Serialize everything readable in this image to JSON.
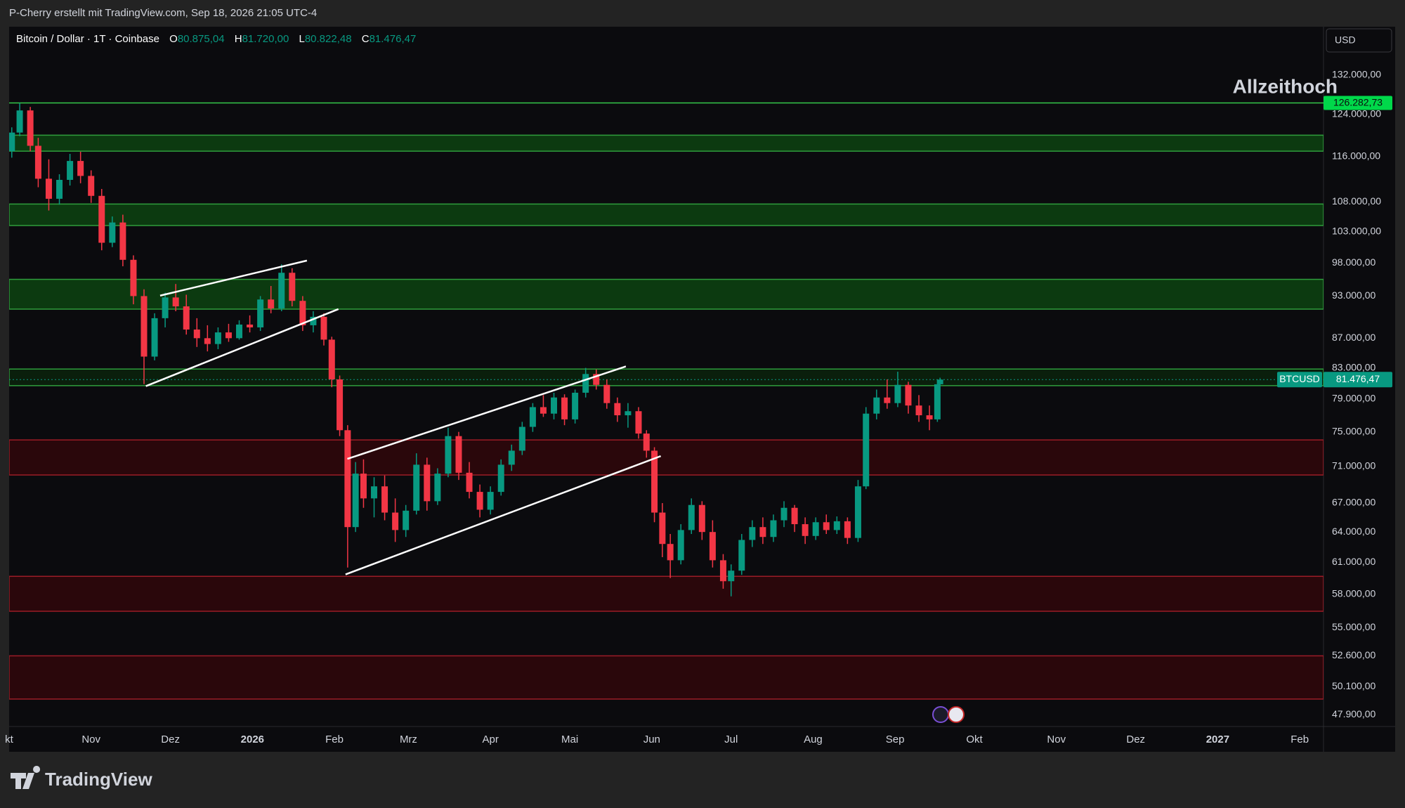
{
  "chart_data": {
    "type": "candlestick",
    "watermark": "P-Cherry erstellt mit TradingView.com, Sep 18, 2026 21:05 UTC-4",
    "title": "Bitcoin / Dollar · 1T · Coinbase",
    "ohlc_header": [
      {
        "label": "O",
        "value": "80.875,04"
      },
      {
        "label": "H",
        "value": "81.720,00"
      },
      {
        "label": "L",
        "value": "80.822,48"
      },
      {
        "label": "C",
        "value": "81.476,47"
      }
    ],
    "currency": "USD",
    "annotation": "Allzeithoch",
    "symbol_tag": "BTCUSD",
    "brand": "TradingView",
    "log_scale": true,
    "grid": false,
    "up_color": "#089981",
    "down_color": "#f23645",
    "xlim": [
      0,
      497
    ],
    "ylim": [
      47030,
      142500
    ],
    "xticks": [
      {
        "value": 0,
        "label": "kt"
      },
      {
        "value": 31,
        "label": "Nov"
      },
      {
        "value": 61,
        "label": "Dez"
      },
      {
        "value": 92,
        "label": "2026"
      },
      {
        "value": 123,
        "label": "Feb"
      },
      {
        "value": 151,
        "label": "Mrz"
      },
      {
        "value": 182,
        "label": "Apr"
      },
      {
        "value": 212,
        "label": "Mai"
      },
      {
        "value": 243,
        "label": "Jun"
      },
      {
        "value": 273,
        "label": "Jul"
      },
      {
        "value": 304,
        "label": "Aug"
      },
      {
        "value": 335,
        "label": "Sep"
      },
      {
        "value": 365,
        "label": "Okt"
      },
      {
        "value": 396,
        "label": "Nov"
      },
      {
        "value": 426,
        "label": "Dez"
      },
      {
        "value": 457,
        "label": "2027"
      },
      {
        "value": 488,
        "label": "Feb"
      }
    ],
    "yticks": [
      {
        "value": 132000,
        "label": "132.000,00"
      },
      {
        "value": 124000,
        "label": "124.000,00"
      },
      {
        "value": 116000,
        "label": "116.000,00"
      },
      {
        "value": 108000,
        "label": "108.000,00"
      },
      {
        "value": 103000,
        "label": "103.000,00"
      },
      {
        "value": 98000,
        "label": "98.000,00"
      },
      {
        "value": 93000,
        "label": "93.000,00"
      },
      {
        "value": 87000,
        "label": "87.000,00"
      },
      {
        "value": 83000,
        "label": "83.000,00"
      },
      {
        "value": 79000,
        "label": "79.000,00"
      },
      {
        "value": 75000,
        "label": "75.000,00"
      },
      {
        "value": 71000,
        "label": "71.000,00"
      },
      {
        "value": 67000,
        "label": "67.000,00"
      },
      {
        "value": 64000,
        "label": "64.000,00"
      },
      {
        "value": 61000,
        "label": "61.000,00"
      },
      {
        "value": 58000,
        "label": "58.000,00"
      },
      {
        "value": 55000,
        "label": "55.000,00"
      },
      {
        "value": 52600,
        "label": "52.600,00"
      },
      {
        "value": 50100,
        "label": "50.100,00"
      },
      {
        "value": 47900,
        "label": "47.900,00"
      }
    ],
    "ath_price": {
      "value": 126282.73,
      "label": "126.282,73"
    },
    "last_price": {
      "value": 81476.47,
      "label": "81.476,47"
    },
    "zones": [
      {
        "low": 117000,
        "high": 120000,
        "color": "#0c3a10",
        "border": "#2f9e3c"
      },
      {
        "low": 104000,
        "high": 107600,
        "color": "#0c3a10",
        "border": "#2f9e3c"
      },
      {
        "low": 91100,
        "high": 95500,
        "color": "#0c3a10",
        "border": "#2f9e3c"
      },
      {
        "low": 80700,
        "high": 82850,
        "color": "#0a1f0c",
        "border": "#2f9e3c"
      },
      {
        "low": 70050,
        "high": 74050,
        "color": "#2a070b",
        "border": "#9c1c26"
      },
      {
        "low": 56450,
        "high": 59660,
        "color": "#2a070b",
        "border": "#9c1c26"
      },
      {
        "low": 49120,
        "high": 52600,
        "color": "#2a070b",
        "border": "#9c1c26"
      }
    ],
    "trendlines": [
      {
        "x": [
          57.1,
          112.6
        ],
        "y": [
          93070,
          98380
        ]
      },
      {
        "x": [
          51.7,
          124.5
        ],
        "y": [
          80640,
          91100
        ]
      },
      {
        "x": [
          127.9,
          233.2
        ],
        "y": [
          71860,
          83200
        ]
      },
      {
        "x": [
          127.2,
          246.4
        ],
        "y": [
          59840,
          72180
        ]
      }
    ],
    "x": [
      1,
      4,
      8,
      11,
      15,
      19,
      23,
      27,
      31,
      35,
      39,
      43,
      47,
      51,
      55,
      59,
      63,
      67,
      71,
      75,
      79,
      83,
      87,
      91,
      95,
      99,
      103,
      107,
      111,
      115,
      119,
      122,
      125,
      128,
      131,
      134,
      138,
      142,
      146,
      150,
      154,
      158,
      162,
      166,
      170,
      174,
      178,
      182,
      186,
      190,
      194,
      198,
      202,
      206,
      210,
      214,
      218,
      222,
      226,
      230,
      234,
      238,
      241,
      244,
      247,
      250,
      254,
      258,
      262,
      266,
      270,
      273,
      277,
      281,
      285,
      289,
      293,
      297,
      301,
      305,
      309,
      313,
      317,
      321,
      324,
      328,
      332,
      336,
      340,
      344,
      348,
      351,
      352
    ],
    "open": [
      117000,
      120500,
      124800,
      118000,
      112000,
      108500,
      111800,
      115200,
      112500,
      109000,
      101200,
      104500,
      98500,
      93000,
      84500,
      89800,
      92800,
      91500,
      88200,
      87000,
      86200,
      87800,
      87000,
      88900,
      88500,
      92500,
      91200,
      96500,
      92300,
      88800,
      90000,
      86800,
      81500,
      75200,
      64500,
      70200,
      67500,
      68800,
      66000,
      64200,
      66200,
      71200,
      67200,
      70200,
      74500,
      70300,
      68200,
      66300,
      68200,
      71200,
      72800,
      75600,
      78000,
      77200,
      79200,
      76500,
      79800,
      82200,
      80800,
      78500,
      77000,
      77500,
      74800,
      72800,
      66000,
      62800,
      61200,
      64200,
      66800,
      64000,
      61200,
      59200,
      60200,
      63200,
      64500,
      63500,
      65200,
      66500,
      64800,
      63600,
      65000,
      64200,
      65100,
      63400,
      68800,
      77200,
      79200,
      78500,
      80800,
      78200,
      77000,
      76500,
      80875.04
    ],
    "high": [
      121500,
      126282.73,
      125500,
      119500,
      115500,
      112800,
      116500,
      116900,
      113500,
      110200,
      105500,
      105800,
      99200,
      94000,
      90500,
      93500,
      94800,
      93200,
      89800,
      88800,
      88500,
      89000,
      89500,
      90200,
      93000,
      94500,
      97800,
      97200,
      93000,
      90800,
      90500,
      87200,
      82000,
      75800,
      71500,
      71800,
      69800,
      70000,
      67500,
      66800,
      72500,
      72000,
      70800,
      75500,
      75000,
      71500,
      69000,
      68800,
      71800,
      73500,
      76200,
      78500,
      79500,
      79800,
      79600,
      80200,
      83000,
      82800,
      81500,
      79200,
      78500,
      78000,
      75200,
      73200,
      67000,
      63800,
      64800,
      67500,
      67200,
      65200,
      61800,
      60800,
      63800,
      65200,
      65500,
      65800,
      67200,
      66800,
      65500,
      65500,
      65800,
      65600,
      65500,
      69500,
      78000,
      80200,
      81500,
      82500,
      81200,
      79500,
      78200,
      80500,
      81720
    ],
    "low": [
      115800,
      119800,
      117000,
      110500,
      106500,
      107500,
      110800,
      111200,
      107800,
      100000,
      100500,
      97500,
      91800,
      80900,
      84000,
      88500,
      90800,
      87500,
      85800,
      85200,
      85500,
      86500,
      86800,
      87800,
      88000,
      90500,
      90800,
      91500,
      88000,
      87800,
      86000,
      80500,
      74500,
      60500,
      64000,
      66500,
      65500,
      65200,
      63000,
      63500,
      65800,
      66200,
      66800,
      69800,
      69500,
      67500,
      65500,
      65800,
      67800,
      70500,
      72300,
      75000,
      76800,
      76500,
      75800,
      76000,
      79200,
      80200,
      77800,
      76200,
      75500,
      74200,
      72000,
      65000,
      61500,
      59500,
      60800,
      63800,
      63200,
      60500,
      58500,
      57800,
      59800,
      62500,
      62800,
      63000,
      64500,
      64000,
      62800,
      63200,
      63800,
      63800,
      62800,
      63000,
      68500,
      76500,
      77800,
      78000,
      77200,
      76200,
      75200,
      76200,
      80822.48
    ],
    "close": [
      120500,
      124800,
      118000,
      112000,
      108500,
      111800,
      115200,
      112500,
      109000,
      101200,
      104500,
      98500,
      93000,
      84500,
      89800,
      92800,
      91500,
      88200,
      87000,
      86200,
      87800,
      87000,
      88900,
      88500,
      92500,
      91200,
      96500,
      92300,
      88800,
      90000,
      86800,
      81500,
      75200,
      64500,
      70200,
      67500,
      68800,
      66000,
      64200,
      66200,
      71200,
      67200,
      70200,
      74500,
      70300,
      68200,
      66300,
      68200,
      71200,
      72800,
      75600,
      78000,
      77200,
      79200,
      76500,
      79800,
      82200,
      80800,
      78500,
      77000,
      77500,
      74800,
      72800,
      66000,
      62800,
      61200,
      64200,
      66800,
      64000,
      61200,
      59200,
      60200,
      63200,
      64500,
      63500,
      65200,
      66500,
      64800,
      63600,
      65000,
      64200,
      65100,
      63400,
      68800,
      77200,
      79200,
      78500,
      80800,
      78200,
      77000,
      76500,
      80875.04,
      81476.47
    ]
  }
}
